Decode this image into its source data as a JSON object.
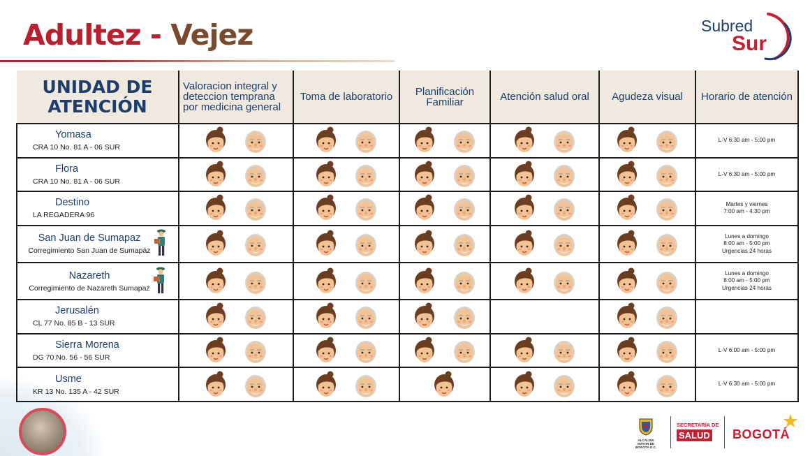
{
  "header": {
    "title_part1": "Adultez",
    "title_dash": " - ",
    "title_part2": "Vejez",
    "logo_word1": "Subred",
    "logo_word2": "Sur"
  },
  "table": {
    "columns": [
      "UNIDAD DE ATENCIÓN",
      "Valoracion integral y deteccion temprana por medicina general",
      "Toma de laboratorio",
      "Planificación Familiar",
      "Atención salud oral",
      "Agudeza visual",
      "Horario de atención"
    ],
    "rows": [
      {
        "name": "Yomasa",
        "address": "CRA 10 No. 81 A - 06 SUR",
        "rural": false,
        "services": [
          [
            "woman",
            "elder"
          ],
          [
            "woman",
            "elder"
          ],
          [
            "woman",
            "elder"
          ],
          [
            "woman",
            "elder"
          ],
          [
            "woman",
            "elder"
          ]
        ],
        "hours": [
          "L-V 6:30 am - 5:00 pm"
        ]
      },
      {
        "name": "Flora",
        "address": "CRA 10 No. 81 A - 06 SUR",
        "rural": false,
        "services": [
          [
            "woman",
            "elder"
          ],
          [
            "woman",
            "elder"
          ],
          [
            "woman",
            "elder"
          ],
          [
            "woman",
            "elder"
          ],
          [
            "woman",
            "elder"
          ]
        ],
        "hours": [
          "L-V  6:30 am - 5:00 pm"
        ]
      },
      {
        "name": "Destino",
        "address": "LA REGADERA 96",
        "rural": false,
        "services": [
          [
            "woman",
            "elder"
          ],
          [
            "woman",
            "elder"
          ],
          [
            "woman",
            "elder"
          ],
          [
            "woman",
            "elder"
          ],
          [
            "woman",
            "elder"
          ]
        ],
        "hours": [
          "Martes y viernes",
          "7:00 am - 4:30 pm"
        ]
      },
      {
        "name": "San Juan de Sumapaz",
        "address": "Corregimiento San Juan de Sumapáz",
        "rural": true,
        "services": [
          [
            "woman",
            "elder"
          ],
          [
            "woman",
            "elder"
          ],
          [
            "woman",
            "elder"
          ],
          [
            "woman",
            "elder"
          ],
          [
            "woman",
            "elder"
          ]
        ],
        "hours": [
          "Lunes a domingo",
          "8:00 am - 5:00 pm",
          "Urgencias 24 horas"
        ]
      },
      {
        "name": "Nazareth",
        "address": "Corregimiento de Nazareth Sumapaz",
        "rural": true,
        "services": [
          [
            "woman",
            "elder"
          ],
          [
            "woman",
            "elder"
          ],
          [
            "woman",
            "elder"
          ],
          [
            "woman",
            "elder"
          ],
          [
            "woman",
            "elder"
          ]
        ],
        "hours": [
          "Lunes a domingo",
          "8:00 am - 5:00 pm",
          "Urgencias 24 horas"
        ]
      },
      {
        "name": "Jerusalén",
        "address": "CL 77 No. 85 B - 13 SUR",
        "rural": false,
        "services": [
          [
            "woman",
            "elder"
          ],
          [
            "woman",
            "elder"
          ],
          [
            "woman",
            "elder"
          ],
          [],
          [
            "woman",
            "elder"
          ]
        ],
        "hours": []
      },
      {
        "name": "Sierra Morena",
        "address": "DG 70 No. 56 - 56 SUR",
        "rural": false,
        "services": [
          [
            "woman",
            "elder"
          ],
          [
            "woman",
            "elder"
          ],
          [
            "woman",
            "elder"
          ],
          [
            "woman",
            "elder"
          ],
          [
            "woman",
            "elder"
          ]
        ],
        "hours": [
          "L-V  6:00 am - 5:00 pm"
        ]
      },
      {
        "name": "Usme",
        "address": "KR 13 No. 135 A - 42 SUR",
        "rural": false,
        "services": [
          [
            "woman",
            "elder"
          ],
          [
            "woman",
            "elder"
          ],
          [
            "woman"
          ],
          [
            "woman",
            "elder"
          ],
          [
            "woman",
            "elder"
          ]
        ],
        "hours": [
          "L-V  6:30 am - 5:00 pm"
        ]
      }
    ]
  },
  "footer": {
    "alcaldia": "ALCALDÍA MAYOR DE BOGOTÁ D.C.",
    "secretaria": "SECRETARÍA DE",
    "salud": "SALUD",
    "bogota": "BOGOTÁ"
  },
  "icons": {
    "woman": "woman-face-icon",
    "elder": "elder-face-icon",
    "rural": "farmer-icon",
    "star": "star-icon"
  },
  "colors": {
    "brand_red": "#b7212f",
    "brand_brown": "#7a4a2c",
    "navy": "#1d3e6d",
    "header_bg": "#f0e9df",
    "skin": "#f4c393"
  }
}
